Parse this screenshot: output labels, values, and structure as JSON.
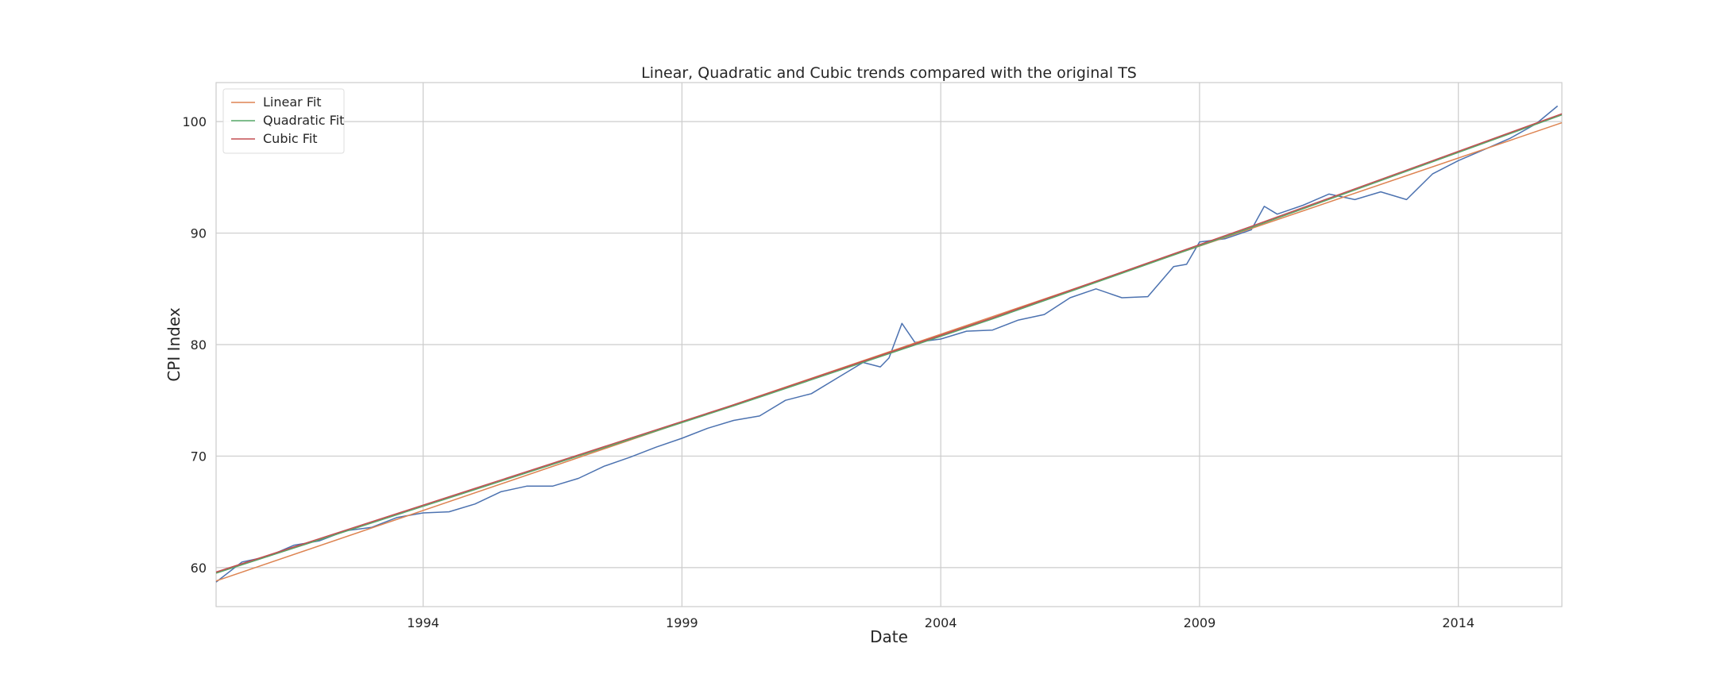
{
  "chart_data": {
    "type": "line",
    "title": "Linear, Quadratic and Cubic trends compared with the original TS",
    "xlabel": "Date",
    "ylabel": "CPI Index",
    "xlim": [
      "1990-01",
      "2016-01"
    ],
    "ylim": [
      56.5,
      103.5
    ],
    "xticks": [
      1994,
      1999,
      2004,
      2009,
      2014
    ],
    "xtick_labels": [
      "1994",
      "1999",
      "2004",
      "2009",
      "2014"
    ],
    "yticks": [
      60,
      70,
      80,
      90,
      100
    ],
    "ytick_labels": [
      "60",
      "70",
      "80",
      "90",
      "100"
    ],
    "grid": true,
    "legend_position": "upper-left",
    "series": [
      {
        "key": "original",
        "color": "#4c72b0",
        "x": [
          "1990-01",
          "1990-07",
          "1991-01",
          "1991-07",
          "1992-01",
          "1992-07",
          "1993-01",
          "1993-07",
          "1994-01",
          "1994-07",
          "1995-01",
          "1995-07",
          "1996-01",
          "1996-07",
          "1997-01",
          "1997-07",
          "1998-01",
          "1998-07",
          "1999-01",
          "1999-07",
          "2000-01",
          "2000-07",
          "2001-01",
          "2001-07",
          "2002-01",
          "2002-07",
          "2002-11",
          "2003-01",
          "2003-04",
          "2003-07",
          "2004-01",
          "2004-07",
          "2005-01",
          "2005-07",
          "2006-01",
          "2006-07",
          "2007-01",
          "2007-07",
          "2008-01",
          "2008-07",
          "2008-10",
          "2009-01",
          "2009-07",
          "2010-01",
          "2010-04",
          "2010-07",
          "2011-01",
          "2011-07",
          "2012-01",
          "2012-07",
          "2013-01",
          "2013-07",
          "2014-01",
          "2014-07",
          "2015-01",
          "2015-07",
          "2015-12"
        ],
        "values": [
          58.7,
          60.5,
          61.0,
          62.0,
          62.4,
          63.3,
          63.6,
          64.5,
          64.9,
          65.0,
          65.7,
          66.8,
          67.3,
          67.3,
          68.0,
          69.1,
          69.9,
          70.8,
          71.6,
          72.5,
          73.2,
          73.6,
          75.0,
          75.6,
          77.0,
          78.4,
          78.0,
          78.8,
          81.9,
          80.2,
          80.5,
          81.2,
          81.3,
          82.2,
          82.7,
          84.2,
          85.0,
          84.2,
          84.3,
          87.0,
          87.2,
          89.2,
          89.5,
          90.3,
          92.4,
          91.7,
          92.5,
          93.5,
          93.0,
          93.7,
          93.0,
          95.3,
          96.5,
          97.5,
          98.5,
          99.8,
          101.4
        ]
      },
      {
        "key": "linear",
        "name": "Linear Fit",
        "color": "#dd8452",
        "x": [
          "1990-01",
          "2016-01"
        ],
        "values": [
          58.8,
          99.9
        ]
      },
      {
        "key": "quadratic",
        "name": "Quadratic Fit",
        "color": "#55a868",
        "x": [
          "1990-01",
          "1995-01",
          "2000-01",
          "2005-01",
          "2010-01",
          "2016-01"
        ],
        "values": [
          59.5,
          67.0,
          74.5,
          82.3,
          90.5,
          100.6
        ]
      },
      {
        "key": "cubic",
        "name": "Cubic Fit",
        "color": "#c44e52",
        "x": [
          "1990-01",
          "1995-01",
          "2000-01",
          "2005-01",
          "2010-01",
          "2016-01"
        ],
        "values": [
          59.6,
          67.1,
          74.6,
          82.4,
          90.6,
          100.7
        ]
      }
    ]
  }
}
